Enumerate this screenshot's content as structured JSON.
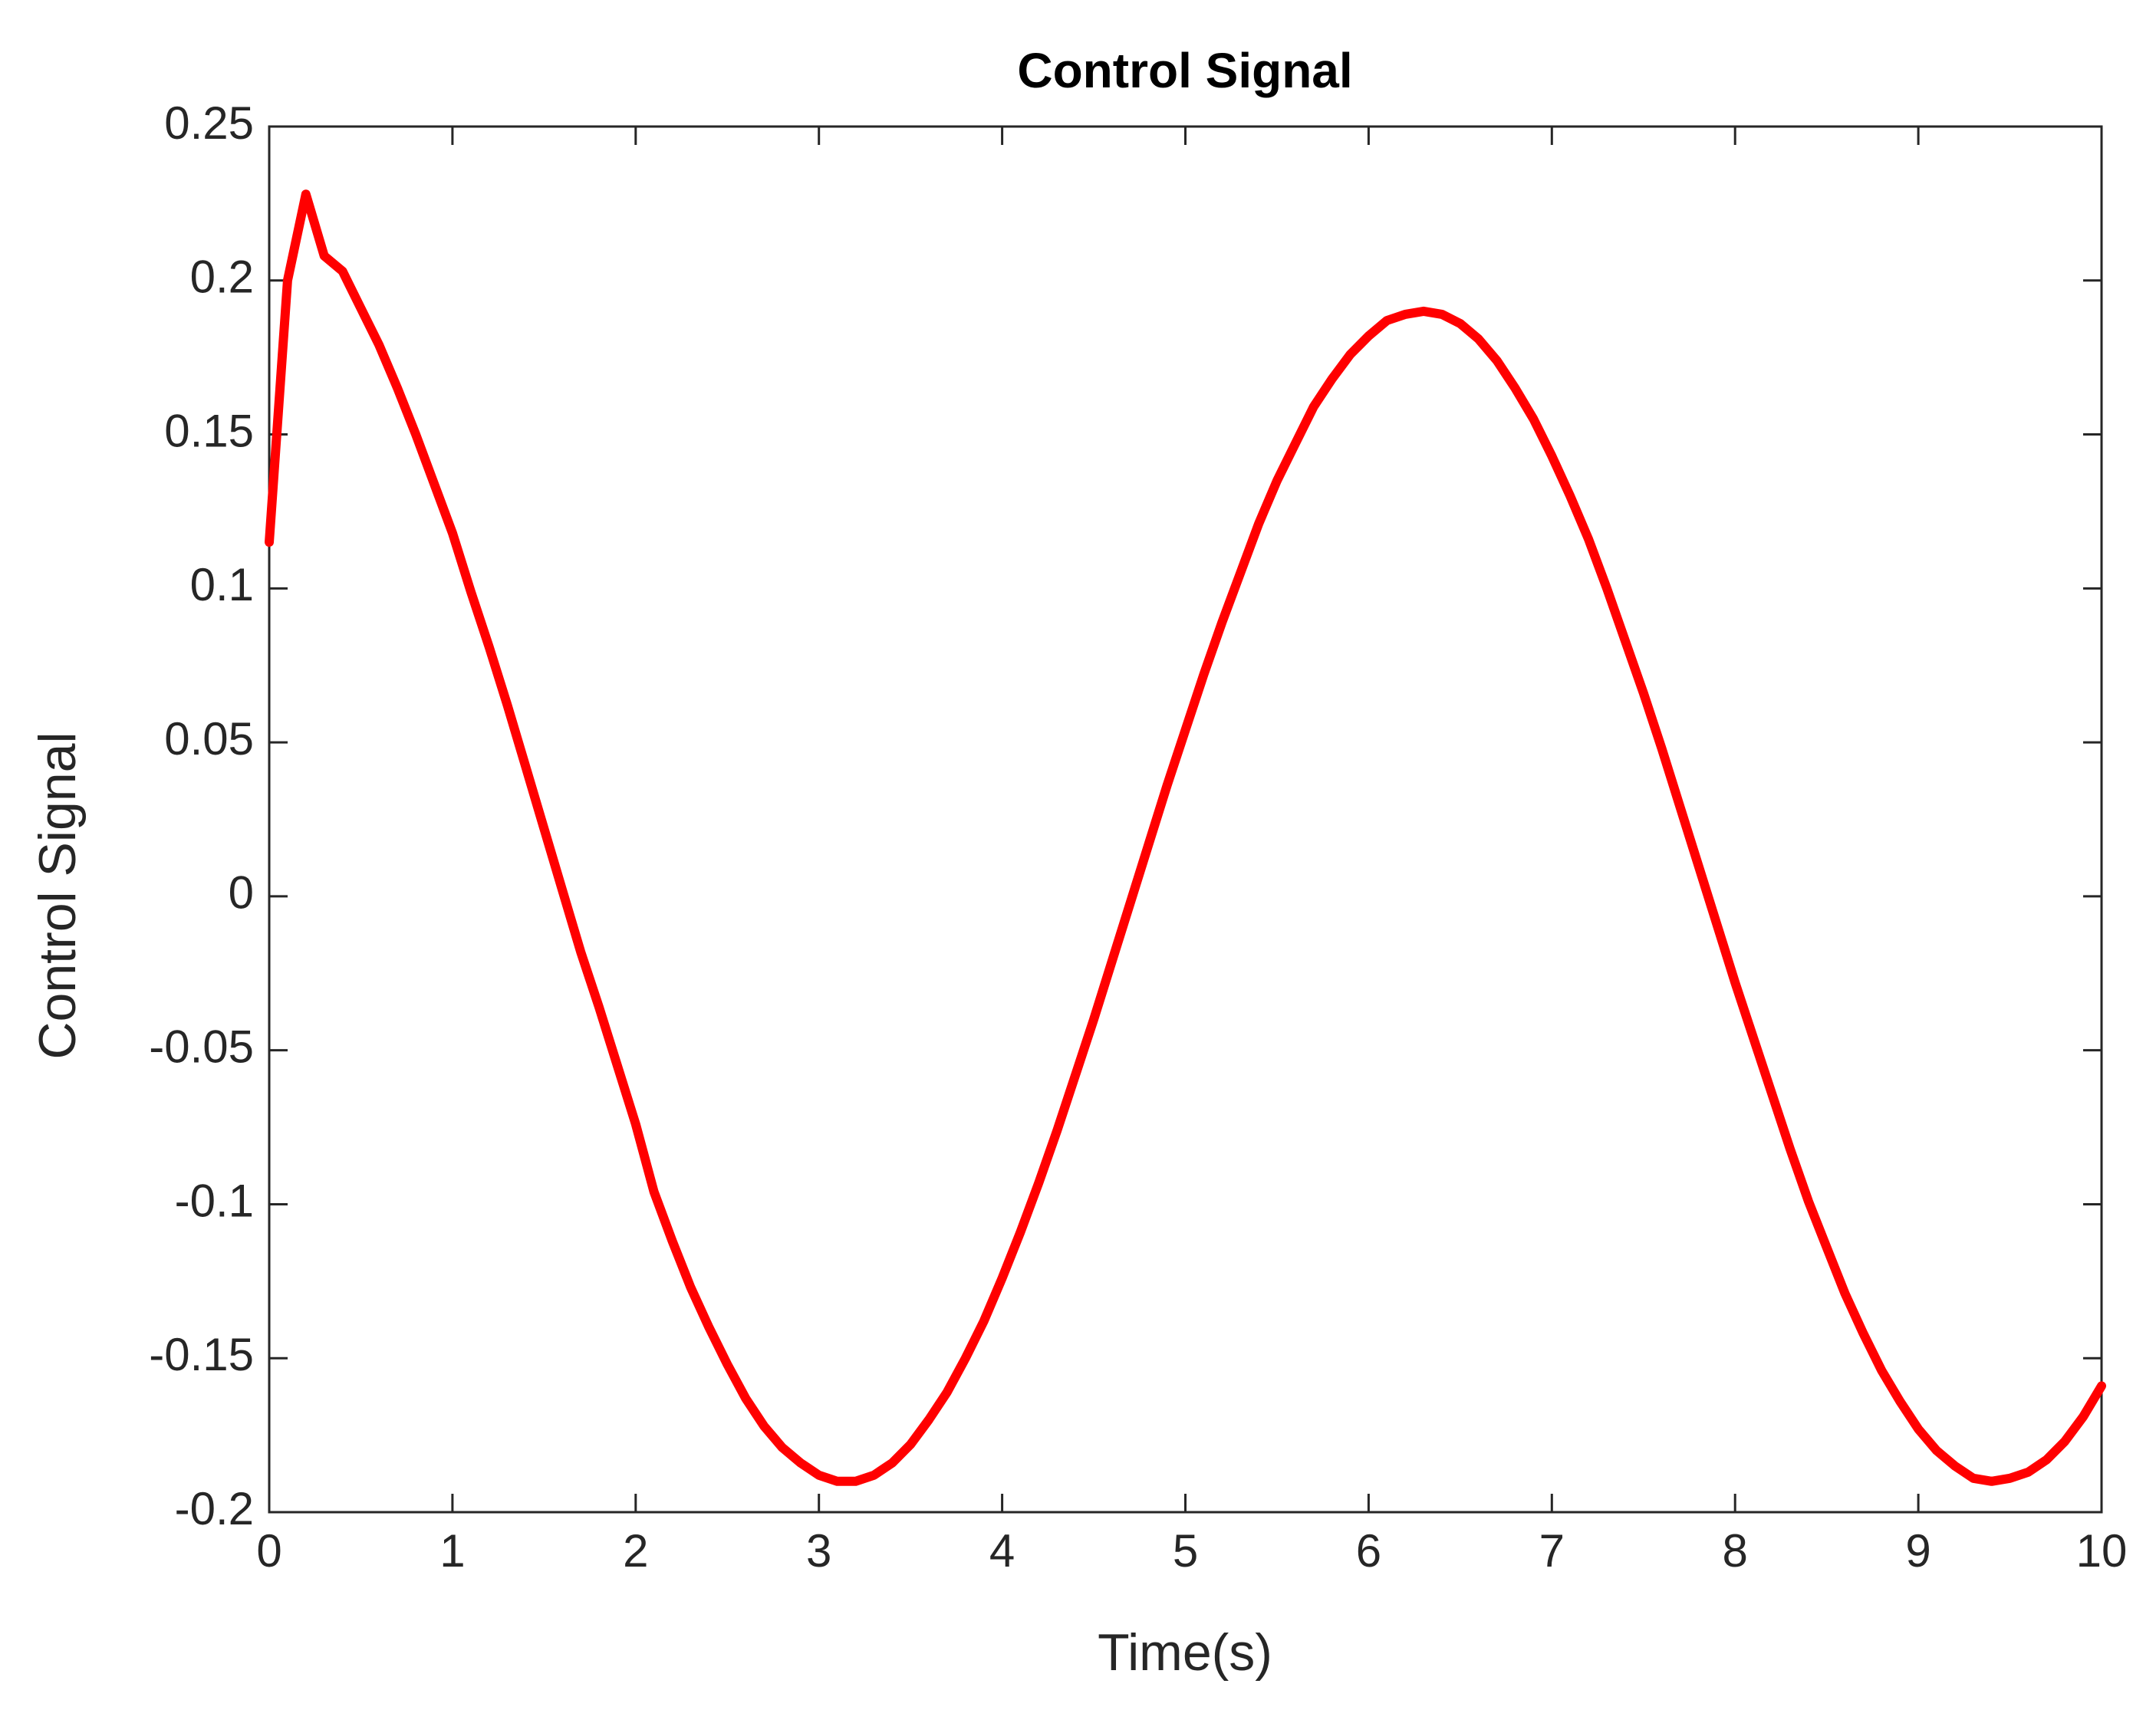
{
  "chart_data": {
    "type": "line",
    "title": "Control Signal",
    "xlabel": "Time(s)",
    "ylabel": "Control Signal",
    "x": [
      0,
      0.1,
      0.2,
      0.3,
      0.4,
      0.5,
      0.6,
      0.7,
      0.8,
      0.9,
      1,
      1.1,
      1.2,
      1.3,
      1.4,
      1.5,
      1.6,
      1.7,
      1.8,
      1.9,
      2,
      2.1,
      2.2,
      2.3,
      2.4,
      2.5,
      2.6,
      2.7,
      2.8,
      2.9,
      3,
      3.1,
      3.2,
      3.3,
      3.4,
      3.5,
      3.6,
      3.7,
      3.8,
      3.9,
      4,
      4.1,
      4.2,
      4.3,
      4.4,
      4.5,
      4.6,
      4.7,
      4.8,
      4.9,
      5,
      5.1,
      5.2,
      5.3,
      5.4,
      5.5,
      5.6,
      5.7,
      5.8,
      5.9,
      6,
      6.1,
      6.2,
      6.3,
      6.4,
      6.5,
      6.6,
      6.7,
      6.8,
      6.9,
      7,
      7.1,
      7.2,
      7.3,
      7.4,
      7.5,
      7.6,
      7.7,
      7.8,
      7.9,
      8,
      8.1,
      8.2,
      8.3,
      8.4,
      8.5,
      8.6,
      8.7,
      8.8,
      8.9,
      9,
      9.1,
      9.2,
      9.3,
      9.4,
      9.5,
      9.6,
      9.7,
      9.8,
      9.9,
      10
    ],
    "values": [
      0.115,
      0.2,
      0.228,
      0.208,
      0.203,
      0.191,
      0.179,
      0.165,
      0.15,
      0.134,
      0.118,
      0.099,
      0.081,
      0.062,
      0.042,
      0.022,
      0.002,
      -0.018,
      -0.036,
      -0.055,
      -0.074,
      -0.096,
      -0.112,
      -0.127,
      -0.14,
      -0.152,
      -0.163,
      -0.172,
      -0.179,
      -0.184,
      -0.188,
      -0.19,
      -0.19,
      -0.188,
      -0.184,
      -0.178,
      -0.17,
      -0.161,
      -0.15,
      -0.138,
      -0.124,
      -0.109,
      -0.093,
      -0.076,
      -0.058,
      -0.04,
      -0.021,
      -0.002,
      0.017,
      0.036,
      0.054,
      0.072,
      0.089,
      0.105,
      0.121,
      0.135,
      0.147,
      0.159,
      0.168,
      0.176,
      0.182,
      0.187,
      0.189,
      0.19,
      0.189,
      0.186,
      0.181,
      0.174,
      0.165,
      0.155,
      0.143,
      0.13,
      0.116,
      0.1,
      0.083,
      0.066,
      0.048,
      0.029,
      0.01,
      -0.009,
      -0.028,
      -0.046,
      -0.064,
      -0.082,
      -0.099,
      -0.114,
      -0.129,
      -0.142,
      -0.154,
      -0.164,
      -0.173,
      -0.18,
      -0.185,
      -0.189,
      -0.19,
      -0.189,
      -0.187,
      -0.183,
      -0.177,
      -0.169,
      -0.159
    ],
    "color": "#ff0000",
    "xlim": [
      0,
      10
    ],
    "xticks": [
      0,
      1,
      2,
      3,
      4,
      5,
      6,
      7,
      8,
      9,
      10
    ],
    "ylim": [
      -0.2,
      0.25
    ],
    "yticks": [
      -0.2,
      -0.15,
      -0.1,
      -0.05,
      0,
      0.05,
      0.1,
      0.15,
      0.2,
      0.25
    ],
    "grid": false
  }
}
